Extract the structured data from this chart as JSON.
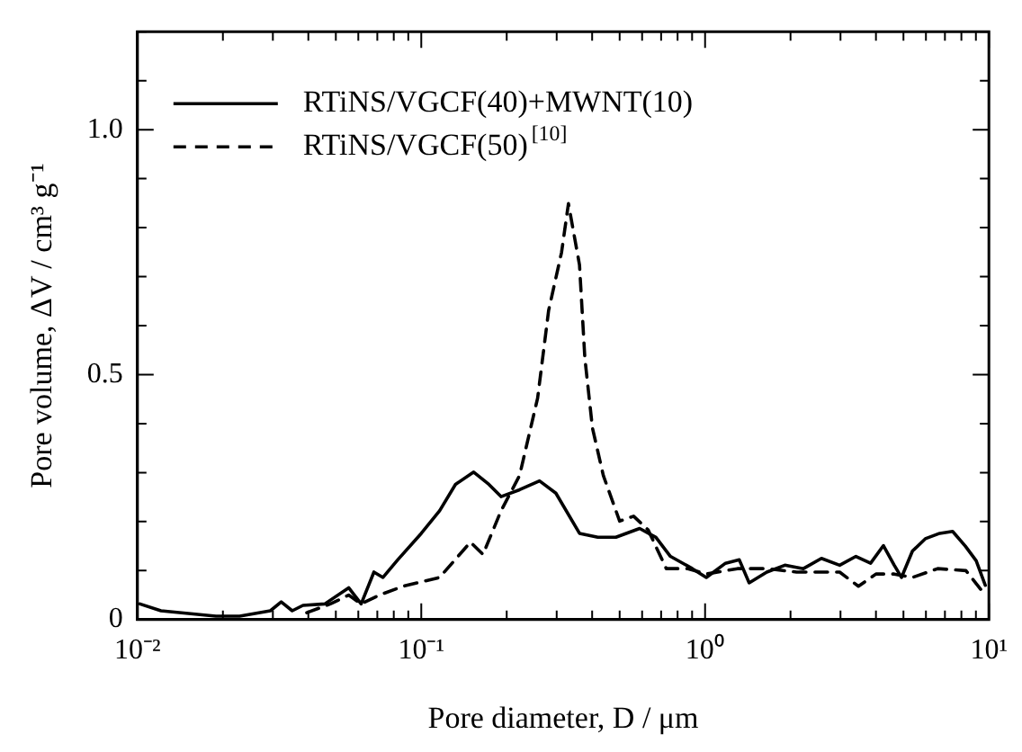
{
  "chart_data": {
    "type": "line",
    "xlabel": "Pore diameter, D / μm",
    "ylabel": "Pore volume, ΔV / cm³ g⁻¹",
    "log": "x",
    "grid": false,
    "legend": "top left",
    "marker": "none",
    "xlim": [
      0.01,
      10
    ],
    "ylim": [
      0,
      1.2
    ],
    "xticks": [
      {
        "value": 0.01,
        "label": "10⁻²"
      },
      {
        "value": 0.02,
        "label": null
      },
      {
        "value": 0.03,
        "label": null
      },
      {
        "value": 0.04,
        "label": null
      },
      {
        "value": 0.05,
        "label": null
      },
      {
        "value": 0.06,
        "label": null
      },
      {
        "value": 0.07,
        "label": null
      },
      {
        "value": 0.08,
        "label": null
      },
      {
        "value": 0.09,
        "label": null
      },
      {
        "value": 0.1,
        "label": "10⁻¹"
      },
      {
        "value": 0.2,
        "label": null
      },
      {
        "value": 0.3,
        "label": null
      },
      {
        "value": 0.4,
        "label": null
      },
      {
        "value": 0.5,
        "label": null
      },
      {
        "value": 0.6,
        "label": null
      },
      {
        "value": 0.7,
        "label": null
      },
      {
        "value": 0.8,
        "label": null
      },
      {
        "value": 0.9,
        "label": null
      },
      {
        "value": 1,
        "label": "10⁰"
      },
      {
        "value": 2,
        "label": null
      },
      {
        "value": 3,
        "label": null
      },
      {
        "value": 4,
        "label": null
      },
      {
        "value": 5,
        "label": null
      },
      {
        "value": 6,
        "label": null
      },
      {
        "value": 7,
        "label": null
      },
      {
        "value": 8,
        "label": null
      },
      {
        "value": 9,
        "label": null
      },
      {
        "value": 10,
        "label": "10¹"
      }
    ],
    "yticks": [
      0,
      {
        "value": 0.1,
        "label": null
      },
      {
        "value": 0.2,
        "label": null
      },
      {
        "value": 0.3,
        "label": null
      },
      {
        "value": 0.4,
        "label": null
      },
      {
        "value": 0.5,
        "label": "0.5"
      },
      {
        "value": 0.6,
        "label": null
      },
      {
        "value": 0.7,
        "label": null
      },
      {
        "value": 0.8,
        "label": null
      },
      {
        "value": 0.9,
        "label": null
      },
      {
        "value": 1.0,
        "label": "1.0"
      },
      {
        "value": 1.1,
        "label": null
      },
      {
        "value": 1.2,
        "label": null
      }
    ],
    "series": [
      {
        "name": "RTiNS/VGCF(40)+MWNT(10)",
        "color": "#000000",
        "line_style": "solid",
        "x": [
          0.0102,
          0.0121,
          0.0189,
          0.0229,
          0.0294,
          0.0321,
          0.0351,
          0.0383,
          0.0457,
          0.0555,
          0.0614,
          0.0681,
          0.0733,
          0.0826,
          0.1,
          0.116,
          0.132,
          0.153,
          0.173,
          0.191,
          0.222,
          0.261,
          0.298,
          0.361,
          0.419,
          0.485,
          0.588,
          0.671,
          0.755,
          0.902,
          1.01,
          1.18,
          1.32,
          1.43,
          1.65,
          1.91,
          2.22,
          2.57,
          2.98,
          3.4,
          3.83,
          4.25,
          4.64,
          4.92,
          5.38,
          5.97,
          6.71,
          7.45,
          8.26,
          9.02,
          9.71
        ],
        "values": [
          0.032,
          0.018,
          0.007,
          0.007,
          0.018,
          0.036,
          0.018,
          0.029,
          0.032,
          0.065,
          0.032,
          0.097,
          0.086,
          0.122,
          0.176,
          0.222,
          0.276,
          0.301,
          0.276,
          0.251,
          0.265,
          0.283,
          0.258,
          0.176,
          0.168,
          0.168,
          0.186,
          0.168,
          0.129,
          0.104,
          0.086,
          0.115,
          0.122,
          0.075,
          0.097,
          0.111,
          0.104,
          0.125,
          0.111,
          0.129,
          0.115,
          0.151,
          0.111,
          0.086,
          0.14,
          0.165,
          0.176,
          0.18,
          0.15,
          0.12,
          0.07
        ]
      },
      {
        "name": "RTiNS/VGCF(50)$^{[10]}$",
        "color": "#000000",
        "line_style": "dashed",
        "x": [
          0.0395,
          0.0478,
          0.0555,
          0.0614,
          0.0711,
          0.0863,
          0.116,
          0.149,
          0.165,
          0.191,
          0.222,
          0.257,
          0.281,
          0.312,
          0.33,
          0.361,
          0.377,
          0.401,
          0.438,
          0.5,
          0.56,
          0.63,
          0.73,
          0.87,
          1.01,
          1.3,
          1.65,
          2.1,
          2.98,
          3.47,
          4.0,
          4.64,
          5.38,
          6.6,
          8.3,
          9.7
        ],
        "values": [
          0.014,
          0.032,
          0.05,
          0.032,
          0.05,
          0.068,
          0.086,
          0.158,
          0.133,
          0.222,
          0.294,
          0.452,
          0.631,
          0.749,
          0.849,
          0.724,
          0.534,
          0.391,
          0.294,
          0.201,
          0.211,
          0.183,
          0.104,
          0.104,
          0.093,
          0.104,
          0.104,
          0.097,
          0.097,
          0.068,
          0.093,
          0.093,
          0.086,
          0.104,
          0.1,
          0.05
        ]
      }
    ]
  }
}
